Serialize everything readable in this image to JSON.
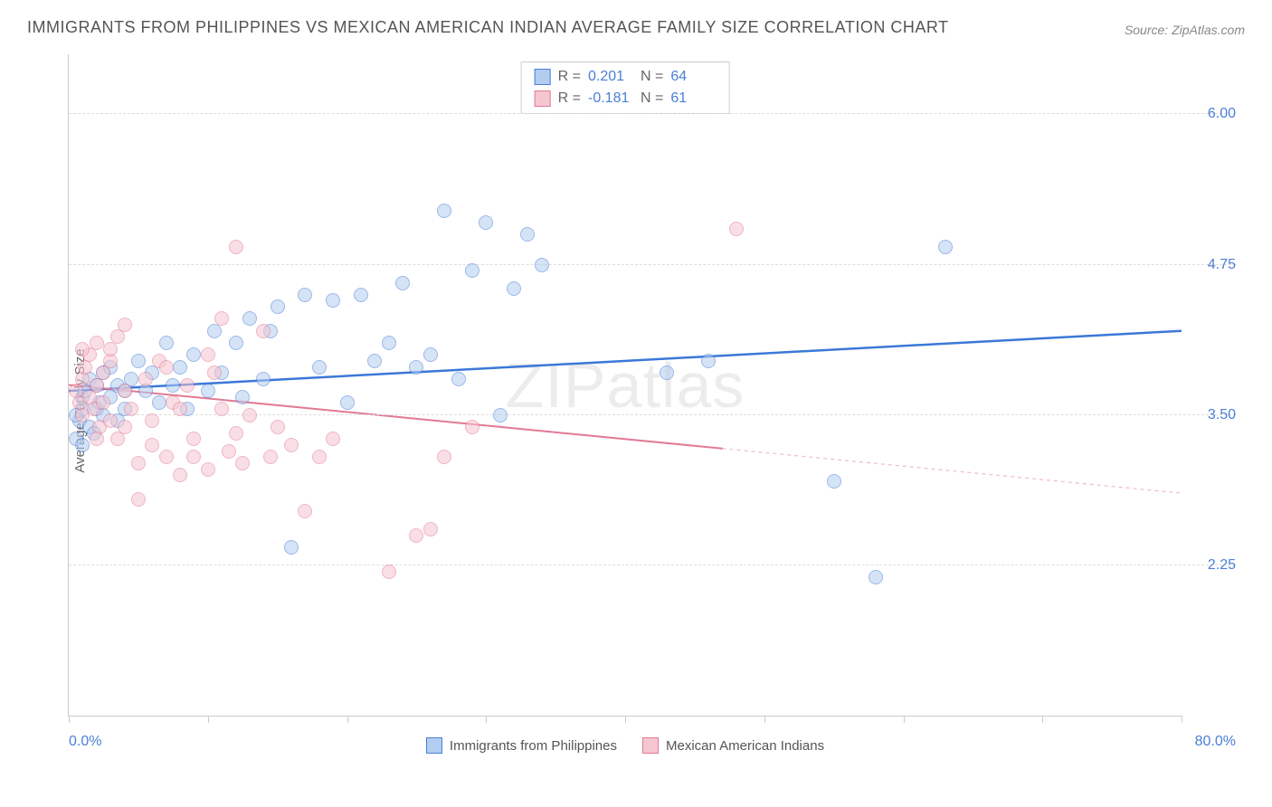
{
  "title": "IMMIGRANTS FROM PHILIPPINES VS MEXICAN AMERICAN INDIAN AVERAGE FAMILY SIZE CORRELATION CHART",
  "source_label": "Source:",
  "source_name": "ZipAtlas.com",
  "ylabel": "Average Family Size",
  "watermark": "ZIPatlas",
  "chart": {
    "type": "scatter",
    "xlim": [
      0,
      80
    ],
    "ylim": [
      1.0,
      6.5
    ],
    "x_min_label": "0.0%",
    "x_max_label": "80.0%",
    "yticks": [
      2.25,
      3.5,
      4.75,
      6.0
    ],
    "ytick_labels": [
      "2.25",
      "3.50",
      "4.75",
      "6.00"
    ],
    "xtick_positions_pct": [
      0,
      10,
      20,
      30,
      40,
      50,
      60,
      70,
      80
    ],
    "grid_color": "#dddddd",
    "axis_color": "#cccccc",
    "tick_label_color": "#4a7fd8",
    "background_color": "#ffffff",
    "point_radius": 8,
    "point_opacity": 0.55,
    "series": [
      {
        "id": "phil",
        "label": "Immigrants from Philippines",
        "color_fill": "#b3cdf0",
        "color_stroke": "#4a7fd8",
        "r": "0.201",
        "n": "64",
        "trend": {
          "x1": 0,
          "y1": 3.7,
          "x2": 80,
          "y2": 4.2,
          "solid_to_x": 80,
          "color": "#3b78d8",
          "width": 2.5
        },
        "points": [
          [
            0.5,
            3.3
          ],
          [
            0.8,
            3.45
          ],
          [
            1.0,
            3.55
          ],
          [
            1.0,
            3.65
          ],
          [
            1.2,
            3.7
          ],
          [
            1.5,
            3.8
          ],
          [
            1.5,
            3.4
          ],
          [
            1.8,
            3.35
          ],
          [
            2.0,
            3.75
          ],
          [
            2.0,
            3.55
          ],
          [
            2.2,
            3.6
          ],
          [
            2.5,
            3.85
          ],
          [
            2.5,
            3.5
          ],
          [
            3.0,
            3.65
          ],
          [
            3.0,
            3.9
          ],
          [
            3.5,
            3.75
          ],
          [
            3.5,
            3.45
          ],
          [
            4.0,
            3.7
          ],
          [
            4.0,
            3.55
          ],
          [
            4.5,
            3.8
          ],
          [
            5.0,
            3.95
          ],
          [
            5.5,
            3.7
          ],
          [
            6.0,
            3.85
          ],
          [
            6.5,
            3.6
          ],
          [
            7.0,
            4.1
          ],
          [
            7.5,
            3.75
          ],
          [
            8.0,
            3.9
          ],
          [
            8.5,
            3.55
          ],
          [
            9.0,
            4.0
          ],
          [
            10.0,
            3.7
          ],
          [
            10.5,
            4.2
          ],
          [
            11.0,
            3.85
          ],
          [
            12.0,
            4.1
          ],
          [
            12.5,
            3.65
          ],
          [
            13.0,
            4.3
          ],
          [
            14.0,
            3.8
          ],
          [
            14.5,
            4.2
          ],
          [
            15.0,
            4.4
          ],
          [
            16.0,
            2.4
          ],
          [
            17.0,
            4.5
          ],
          [
            18.0,
            3.9
          ],
          [
            19.0,
            4.45
          ],
          [
            20.0,
            3.6
          ],
          [
            21.0,
            4.5
          ],
          [
            22.0,
            3.95
          ],
          [
            23.0,
            4.1
          ],
          [
            24.0,
            4.6
          ],
          [
            25.0,
            3.9
          ],
          [
            26.0,
            4.0
          ],
          [
            27.0,
            5.2
          ],
          [
            28.0,
            3.8
          ],
          [
            29.0,
            4.7
          ],
          [
            30.0,
            5.1
          ],
          [
            31.0,
            3.5
          ],
          [
            32.0,
            4.55
          ],
          [
            33.0,
            5.0
          ],
          [
            34.0,
            4.75
          ],
          [
            43.0,
            3.85
          ],
          [
            46.0,
            3.95
          ],
          [
            55.0,
            2.95
          ],
          [
            58.0,
            2.15
          ],
          [
            63.0,
            4.9
          ],
          [
            1.0,
            3.25
          ],
          [
            0.5,
            3.5
          ]
        ]
      },
      {
        "id": "mex",
        "label": "Mexican American Indians",
        "color_fill": "#f5c6d0",
        "color_stroke": "#e27a95",
        "r": "-0.181",
        "n": "61",
        "trend": {
          "x1": 0,
          "y1": 3.75,
          "x2": 80,
          "y2": 2.85,
          "solid_to_x": 47,
          "color": "#e27a95",
          "width": 2
        },
        "points": [
          [
            0.5,
            3.7
          ],
          [
            0.8,
            3.6
          ],
          [
            1.0,
            3.8
          ],
          [
            1.0,
            3.5
          ],
          [
            1.2,
            3.9
          ],
          [
            1.5,
            3.65
          ],
          [
            1.5,
            4.0
          ],
          [
            1.8,
            3.55
          ],
          [
            2.0,
            3.75
          ],
          [
            2.0,
            4.1
          ],
          [
            2.2,
            3.4
          ],
          [
            2.5,
            3.85
          ],
          [
            2.5,
            3.6
          ],
          [
            3.0,
            3.95
          ],
          [
            3.0,
            3.45
          ],
          [
            3.5,
            4.15
          ],
          [
            3.5,
            3.3
          ],
          [
            4.0,
            3.7
          ],
          [
            4.0,
            4.25
          ],
          [
            4.5,
            3.55
          ],
          [
            5.0,
            3.1
          ],
          [
            5.5,
            3.8
          ],
          [
            6.0,
            3.25
          ],
          [
            6.5,
            3.95
          ],
          [
            7.0,
            3.15
          ],
          [
            7.5,
            3.6
          ],
          [
            8.0,
            3.0
          ],
          [
            8.5,
            3.75
          ],
          [
            9.0,
            3.3
          ],
          [
            10.0,
            3.05
          ],
          [
            10.5,
            3.85
          ],
          [
            11.0,
            4.3
          ],
          [
            11.5,
            3.2
          ],
          [
            12.0,
            4.9
          ],
          [
            12.5,
            3.1
          ],
          [
            13.0,
            3.5
          ],
          [
            14.0,
            4.2
          ],
          [
            14.5,
            3.15
          ],
          [
            15.0,
            3.4
          ],
          [
            16.0,
            3.25
          ],
          [
            17.0,
            2.7
          ],
          [
            18.0,
            3.15
          ],
          [
            19.0,
            3.3
          ],
          [
            23.0,
            2.2
          ],
          [
            25.0,
            2.5
          ],
          [
            26.0,
            2.55
          ],
          [
            27.0,
            3.15
          ],
          [
            29.0,
            3.4
          ],
          [
            48.0,
            5.05
          ],
          [
            1.0,
            4.05
          ],
          [
            2.0,
            3.3
          ],
          [
            3.0,
            4.05
          ],
          [
            4.0,
            3.4
          ],
          [
            5.0,
            2.8
          ],
          [
            6.0,
            3.45
          ],
          [
            7.0,
            3.9
          ],
          [
            8.0,
            3.55
          ],
          [
            9.0,
            3.15
          ],
          [
            10.0,
            4.0
          ],
          [
            11.0,
            3.55
          ],
          [
            12.0,
            3.35
          ]
        ]
      }
    ]
  },
  "bottom_legend": [
    {
      "label": "Immigrants from Philippines",
      "fill": "#b3cdf0",
      "stroke": "#4a7fd8"
    },
    {
      "label": "Mexican American Indians",
      "fill": "#f5c6d0",
      "stroke": "#e27a95"
    }
  ]
}
